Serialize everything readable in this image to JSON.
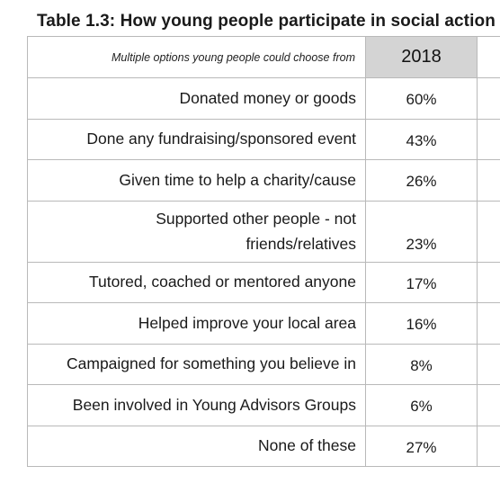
{
  "title": "Table 1.3: How young people participate in social action",
  "table": {
    "header_label": "Multiple options young people could choose from",
    "year": "2018",
    "rows": [
      {
        "label": "Donated money or goods",
        "value": "60%"
      },
      {
        "label": "Done any fundraising/sponsored event",
        "value": "43%"
      },
      {
        "label": "Given time to help a charity/cause",
        "value": "26%"
      },
      {
        "label_line1": "Supported other people - not",
        "label_line2": "friends/relatives",
        "value": "23%"
      },
      {
        "label": "Tutored, coached or mentored anyone",
        "value": "17%"
      },
      {
        "label": "Helped improve your local area",
        "value": "16%"
      },
      {
        "label": "Campaigned for something you believe in",
        "value": "8%"
      },
      {
        "label": "Been involved in Young Advisors Groups",
        "value": "6%"
      },
      {
        "label": "None of these",
        "value": "27%"
      }
    ]
  }
}
